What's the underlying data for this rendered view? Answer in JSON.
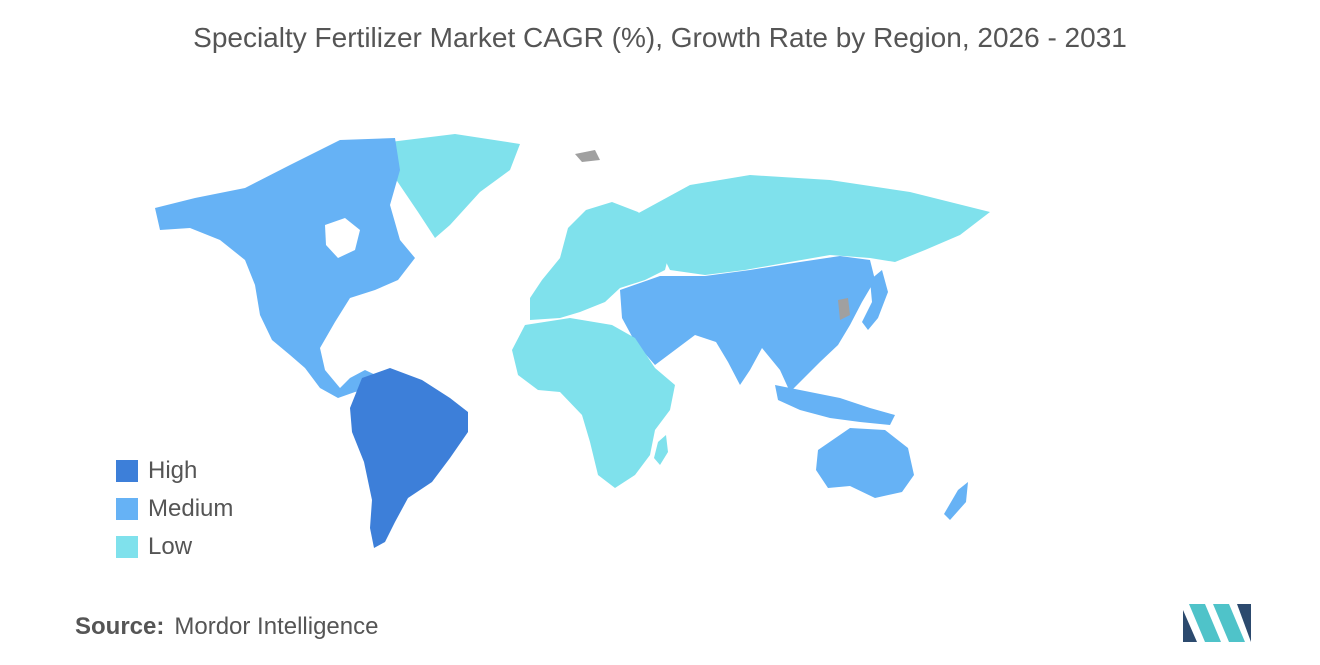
{
  "title": "Specialty Fertilizer Market CAGR (%), Growth Rate by Region, 2026 - 2031",
  "legend": [
    {
      "label": "High",
      "color": "#3d7fd9"
    },
    {
      "label": "Medium",
      "color": "#66b2f5"
    },
    {
      "label": "Low",
      "color": "#7fe1ec"
    }
  ],
  "regions": [
    {
      "name": "South America",
      "level": "High"
    },
    {
      "name": "North America",
      "level": "Medium"
    },
    {
      "name": "Asia-Pacific",
      "level": "Medium"
    },
    {
      "name": "Middle East",
      "level": "Medium"
    },
    {
      "name": "Europe",
      "level": "Low"
    },
    {
      "name": "Africa",
      "level": "Low"
    }
  ],
  "colors": {
    "no_data": "#a0a0a0",
    "text": "#555555"
  },
  "source": {
    "key": "Source:",
    "value": "Mordor Intelligence"
  },
  "logo": {
    "icon": "mordor-intelligence-logo-icon",
    "colors": [
      "#2c4a6e",
      "#4fc3c9"
    ]
  }
}
